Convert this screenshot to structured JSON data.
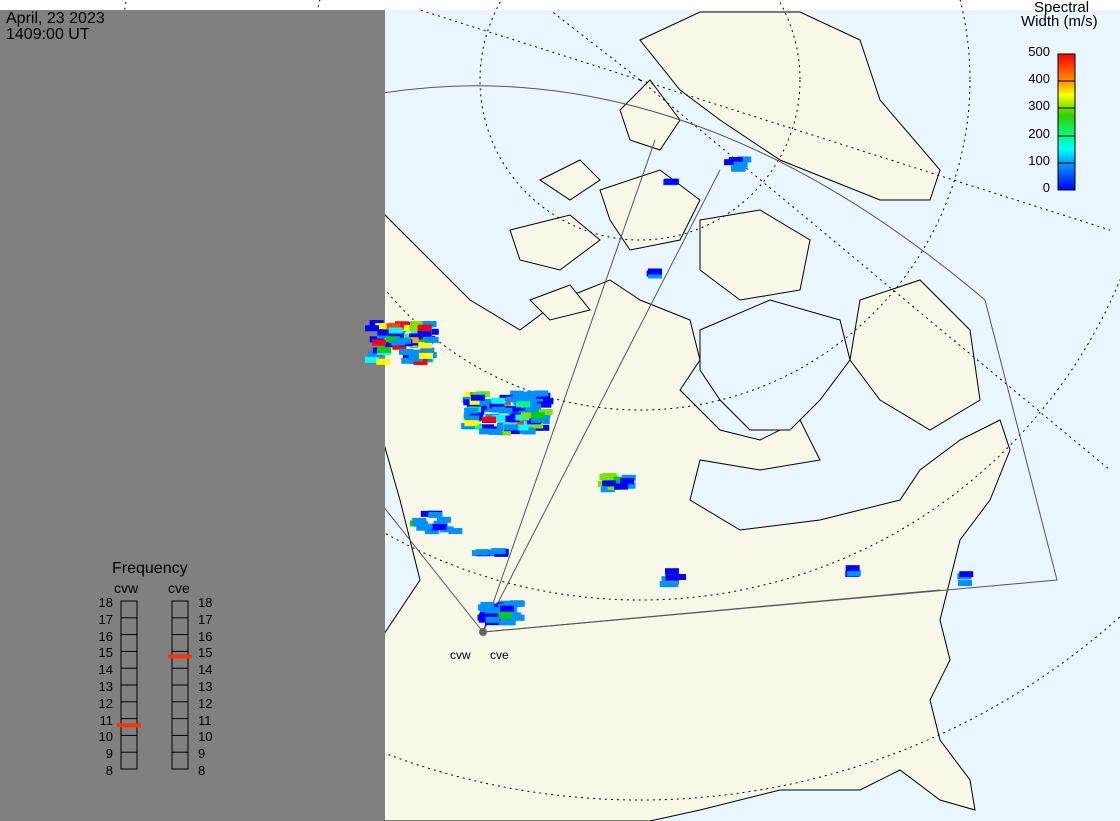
{
  "header": {
    "date": "April, 23 2023",
    "time": "1409:00 UT"
  },
  "colorbar": {
    "title_line1": "Spectral",
    "title_line2": "Width (m/s)",
    "ticks": [
      "500",
      "400",
      "300",
      "200",
      "100",
      "0"
    ],
    "range": [
      0,
      500
    ],
    "colormap": [
      "#0000ff",
      "#0090ff",
      "#00ffff",
      "#00ff80",
      "#00d000",
      "#80e000",
      "#ffff00",
      "#ffa000",
      "#ff4000",
      "#ff0000"
    ]
  },
  "frequency": {
    "title": "Frequency",
    "radars": [
      {
        "name": "cvw",
        "value_mhz": 10.6
      },
      {
        "name": "cve",
        "value_mhz": 14.7
      }
    ],
    "ticks": [
      "18",
      "17",
      "16",
      "15",
      "14",
      "13",
      "12",
      "11",
      "10",
      "9",
      "8"
    ],
    "range": [
      8,
      18
    ],
    "marker_color": "#ff3300"
  },
  "radar_labels": [
    "cvw",
    "cve"
  ],
  "colors": {
    "night": "#808080",
    "ocean": "#eaf6ff",
    "land": "#f8f8e8"
  }
}
